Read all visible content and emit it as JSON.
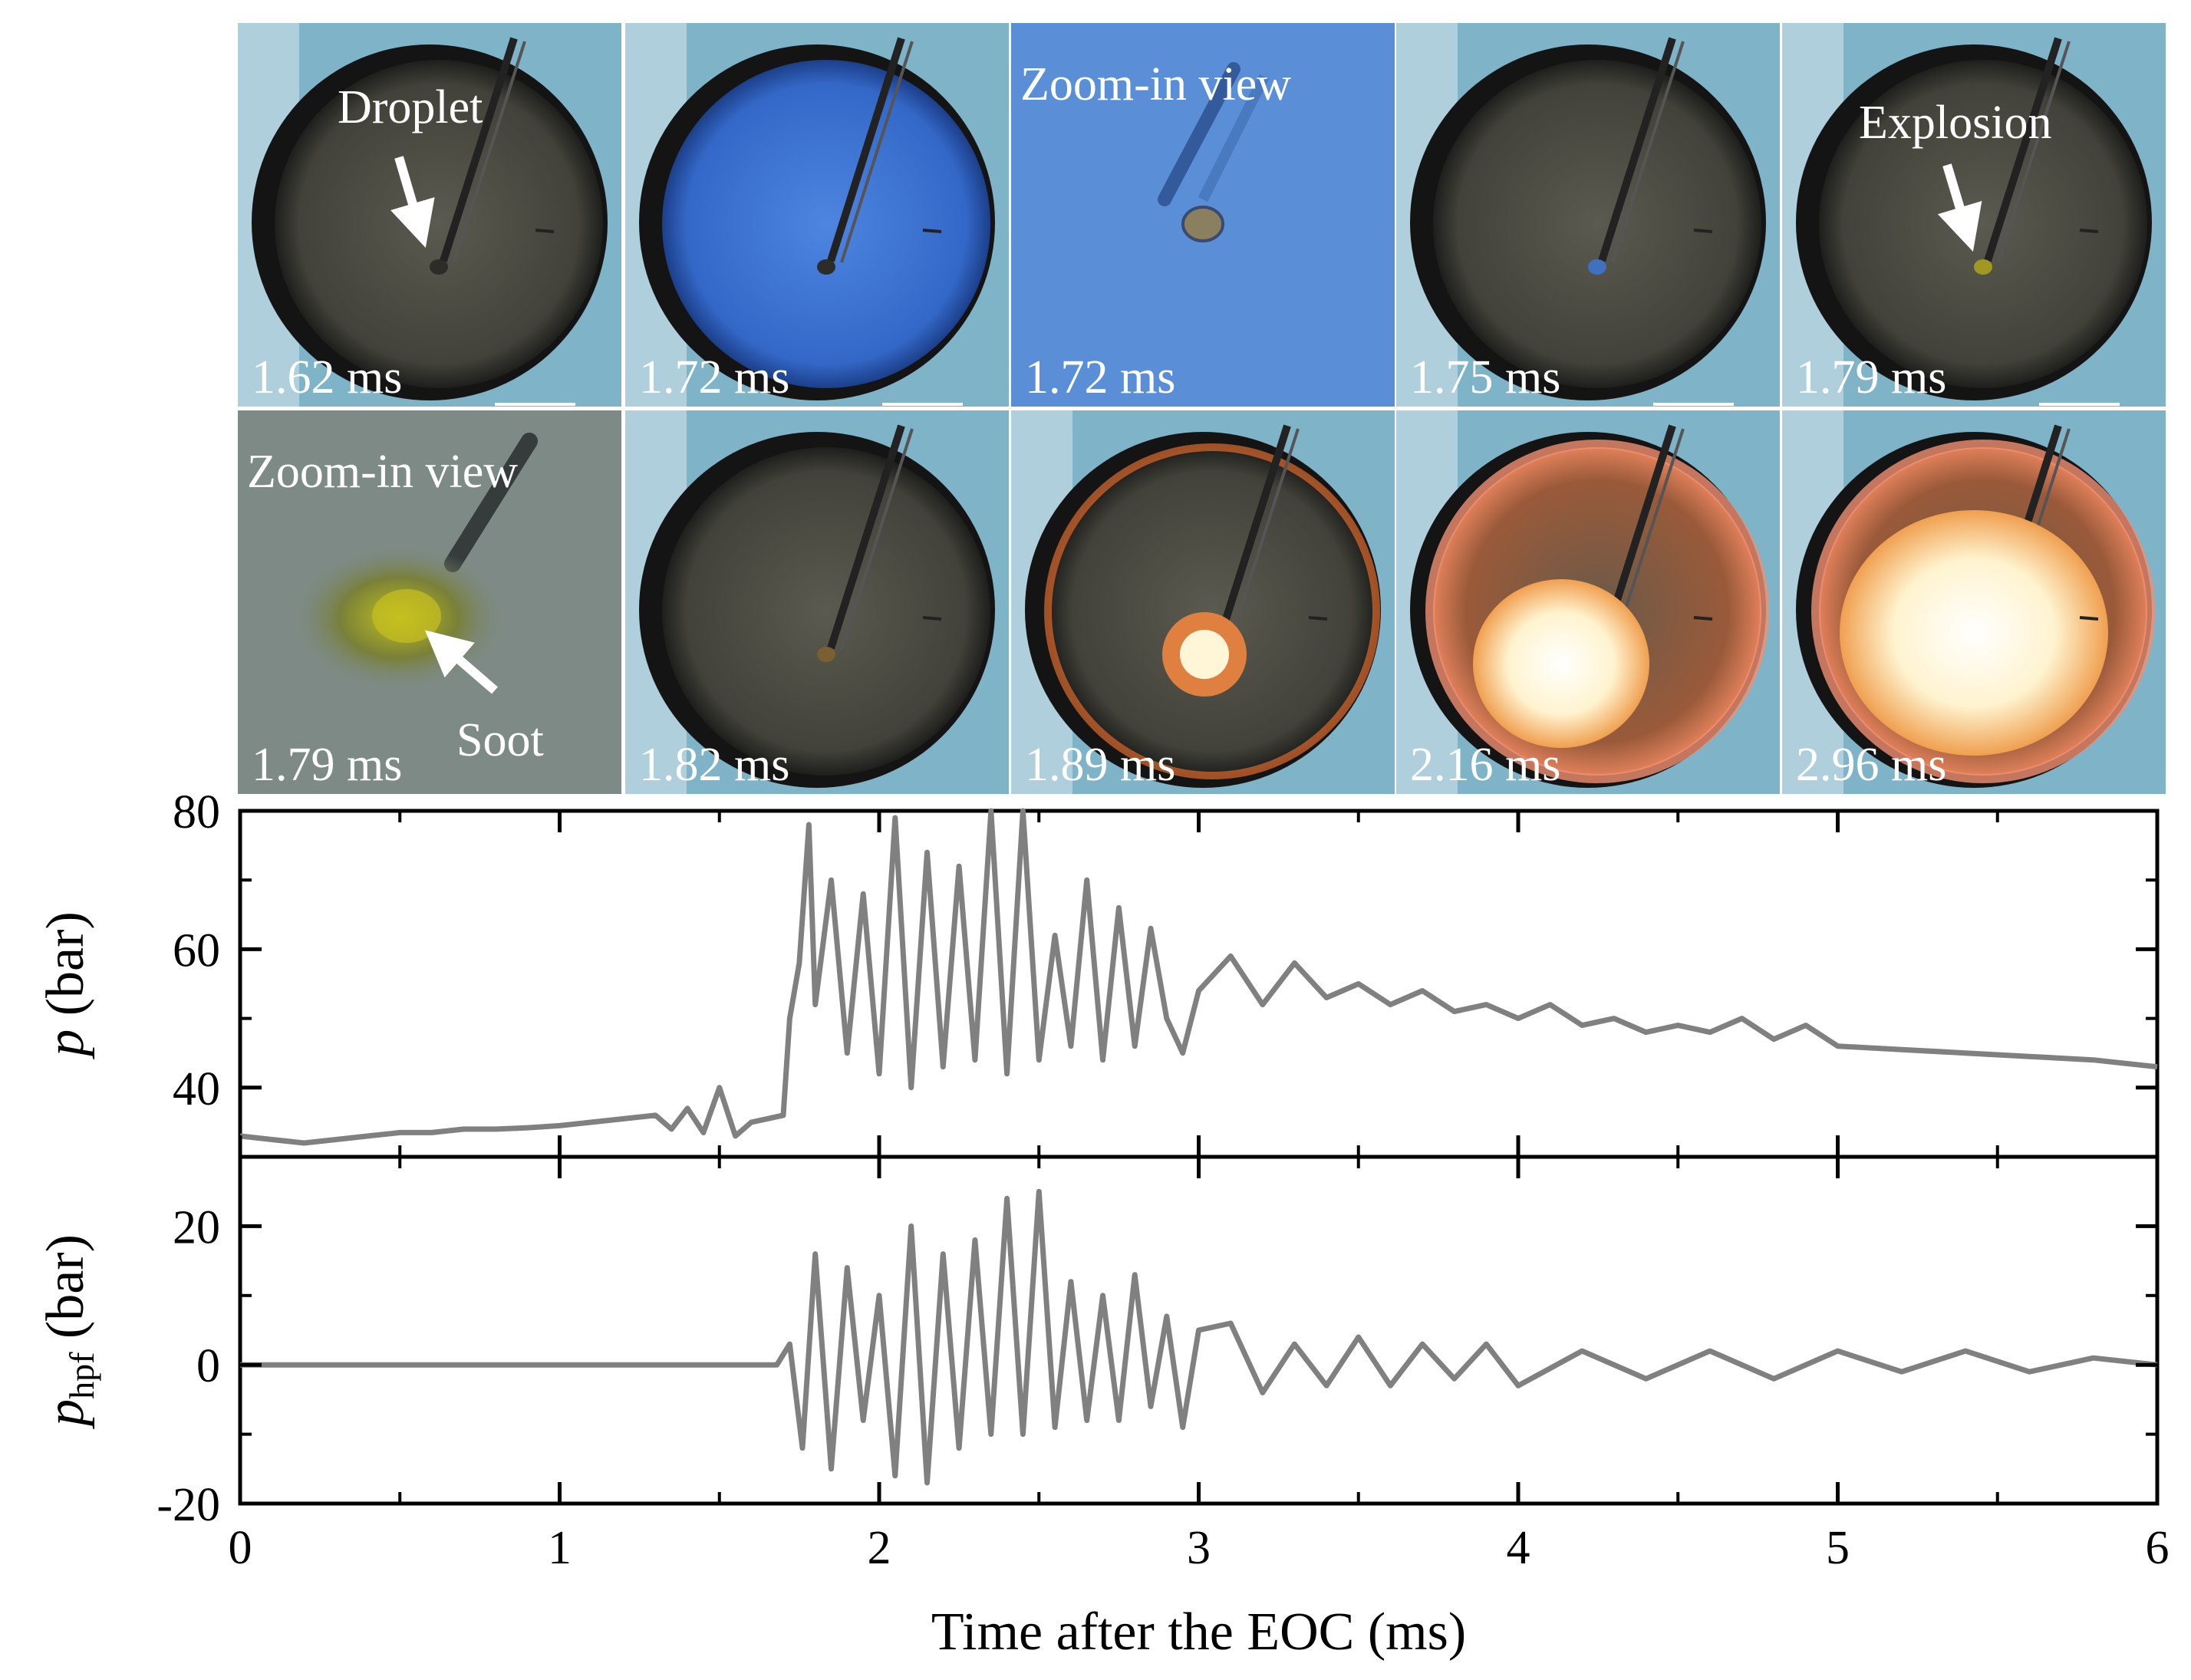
{
  "frames": [
    {
      "row": 0,
      "col": 0,
      "time": "1.62 ms",
      "label": "Droplet",
      "arrow": "down-left",
      "scene": "dark-chamber",
      "feature": "droplet-dark"
    },
    {
      "row": 0,
      "col": 1,
      "time": "1.72 ms",
      "label": "",
      "scene": "blue-chamber",
      "feature": "droplet-dark"
    },
    {
      "row": 0,
      "col": 2,
      "time": "1.72 ms",
      "label": "Zoom-in view",
      "scene": "blue-zoom",
      "feature": "zoom-droplet"
    },
    {
      "row": 0,
      "col": 3,
      "time": "1.75 ms",
      "label": "",
      "scene": "dark-chamber",
      "feature": "droplet-blue"
    },
    {
      "row": 0,
      "col": 4,
      "time": "1.79 ms",
      "label": "Explosion",
      "arrow": "down",
      "scene": "dark-chamber",
      "feature": "droplet-yellow"
    },
    {
      "row": 1,
      "col": 0,
      "time": "1.79 ms",
      "label": "Zoom-in view",
      "label2": "Soot",
      "arrow": "up-left",
      "scene": "gray-zoom",
      "feature": "soot-zoom"
    },
    {
      "row": 1,
      "col": 1,
      "time": "1.82 ms",
      "label": "",
      "scene": "dark-chamber",
      "feature": "droplet-brown"
    },
    {
      "row": 1,
      "col": 2,
      "time": "1.89 ms",
      "label": "",
      "scene": "dark-chamber-glow",
      "feature": "flame-small"
    },
    {
      "row": 1,
      "col": 3,
      "time": "2.16 ms",
      "label": "",
      "scene": "orange-chamber",
      "feature": "flame-medium"
    },
    {
      "row": 1,
      "col": 4,
      "time": "2.96 ms",
      "label": "",
      "scene": "orange-chamber",
      "feature": "flame-large"
    }
  ],
  "colors": {
    "trace": "#808080",
    "frame_bg": "#7fb3c8",
    "chamber_dark": "#4a4a42",
    "chamber_blue": "#3a6fd0",
    "flame": "#fff6d8",
    "flame_edge": "#e8702a",
    "glow": "#c4602a",
    "label": "#ffffff"
  },
  "chart_data": [
    {
      "type": "line",
      "ylabel": "p (bar)",
      "ylabel_italic": "p",
      "ylabel_rest": " (bar)",
      "xlim": [
        0,
        6
      ],
      "ylim": [
        30,
        80
      ],
      "yticks": [
        40,
        60,
        80
      ],
      "minor_yticks": [
        50,
        70
      ],
      "xticks": [
        0,
        1,
        2,
        3,
        4,
        5,
        6
      ],
      "series": [
        {
          "x": [
            0,
            0.1,
            0.2,
            0.3,
            0.4,
            0.5,
            0.6,
            0.7,
            0.8,
            0.9,
            1.0,
            1.1,
            1.2,
            1.3,
            1.35,
            1.4,
            1.45,
            1.5,
            1.55,
            1.6,
            1.65,
            1.7,
            1.72,
            1.75,
            1.78,
            1.8,
            1.85,
            1.9,
            1.95,
            2.0,
            2.05,
            2.1,
            2.15,
            2.2,
            2.25,
            2.3,
            2.35,
            2.4,
            2.45,
            2.5,
            2.55,
            2.6,
            2.65,
            2.7,
            2.75,
            2.8,
            2.85,
            2.9,
            2.95,
            3.0,
            3.1,
            3.2,
            3.3,
            3.4,
            3.5,
            3.6,
            3.7,
            3.8,
            3.9,
            4.0,
            4.1,
            4.2,
            4.3,
            4.4,
            4.5,
            4.6,
            4.7,
            4.8,
            4.9,
            5.0,
            5.2,
            5.4,
            5.6,
            5.8,
            6.0
          ],
          "y": [
            33,
            32.5,
            32,
            32.5,
            33,
            33.5,
            33.5,
            34,
            34,
            34.2,
            34.5,
            35,
            35.5,
            36,
            34,
            37,
            33.5,
            40,
            33,
            35,
            35.5,
            36,
            50,
            58,
            78,
            52,
            70,
            45,
            68,
            42,
            79,
            40,
            74,
            43,
            72,
            44,
            80,
            42,
            80,
            44,
            62,
            46,
            70,
            44,
            66,
            46,
            63,
            50,
            45,
            54,
            59,
            52,
            58,
            53,
            55,
            52,
            54,
            51,
            52,
            50,
            52,
            49,
            50,
            48,
            49,
            48,
            50,
            47,
            49,
            46,
            45.5,
            45,
            44.5,
            44,
            43
          ]
        }
      ]
    },
    {
      "type": "line",
      "ylabel": "p_hpf (bar)",
      "ylabel_italic": "p",
      "ylabel_sub": "hpf",
      "ylabel_rest": " (bar)",
      "xlabel": "Time after the EOC (ms)",
      "xlim": [
        0,
        6
      ],
      "ylim": [
        -20,
        30
      ],
      "yticks": [
        -20,
        0,
        20
      ],
      "minor_yticks": [
        -10,
        10
      ],
      "xticks": [
        0,
        1,
        2,
        3,
        4,
        5,
        6
      ],
      "series": [
        {
          "x": [
            0,
            0.5,
            1.0,
            1.5,
            1.68,
            1.72,
            1.76,
            1.8,
            1.85,
            1.9,
            1.95,
            2.0,
            2.05,
            2.1,
            2.15,
            2.2,
            2.25,
            2.3,
            2.35,
            2.4,
            2.45,
            2.5,
            2.55,
            2.6,
            2.65,
            2.7,
            2.75,
            2.8,
            2.85,
            2.9,
            2.95,
            3.0,
            3.1,
            3.2,
            3.3,
            3.4,
            3.5,
            3.6,
            3.7,
            3.8,
            3.9,
            4.0,
            4.2,
            4.4,
            4.6,
            4.8,
            5.0,
            5.2,
            5.4,
            5.6,
            5.8,
            6.0
          ],
          "y": [
            0,
            0,
            0,
            0,
            0,
            3,
            -12,
            16,
            -15,
            14,
            -8,
            10,
            -16,
            20,
            -17,
            16,
            -12,
            18,
            -10,
            24,
            -10,
            25,
            -9,
            12,
            -8,
            10,
            -8,
            13,
            -6,
            7,
            -9,
            5,
            6,
            -4,
            3,
            -3,
            4,
            -3,
            3,
            -2,
            3,
            -3,
            2,
            -2,
            2,
            -2,
            2,
            -1,
            2,
            -1,
            1,
            0
          ]
        }
      ]
    }
  ]
}
